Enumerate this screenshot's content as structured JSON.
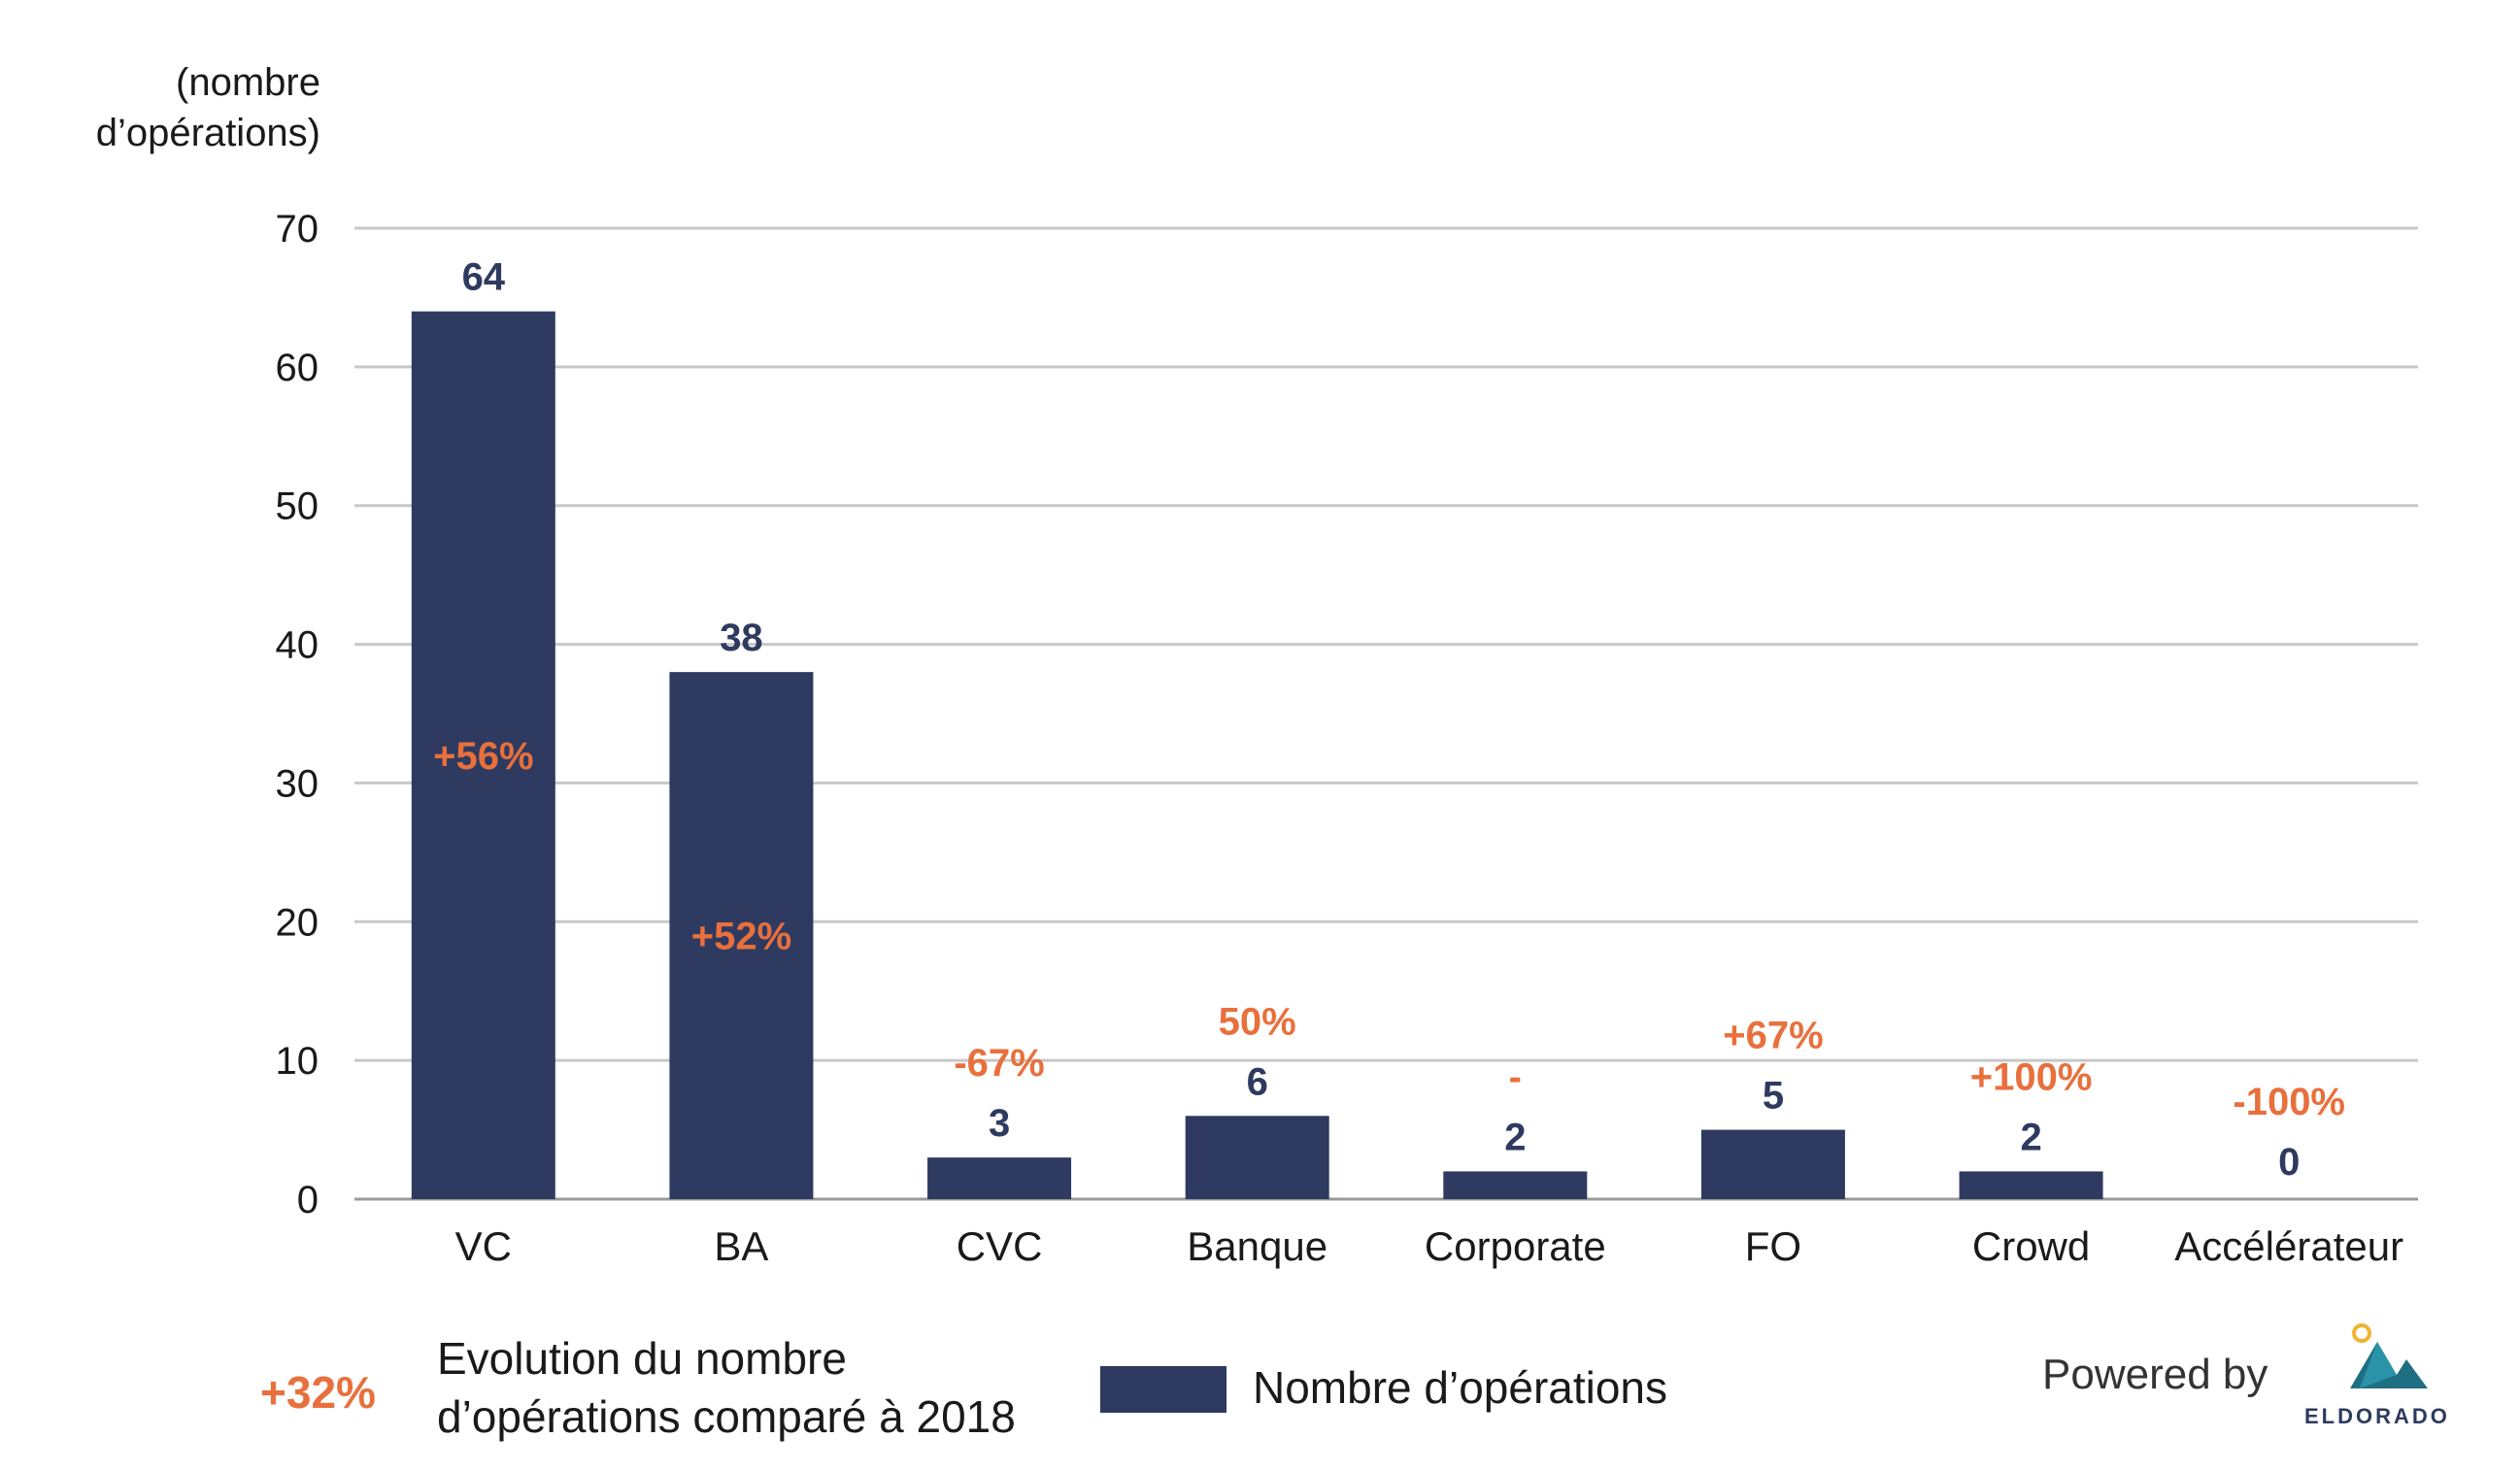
{
  "chart_data": {
    "type": "bar",
    "ylabel_lines": [
      "(nombre",
      "d’opérations)"
    ],
    "ylim": [
      0,
      70
    ],
    "yticks": [
      0,
      10,
      20,
      30,
      40,
      50,
      60,
      70
    ],
    "grid": true,
    "categories": [
      "VC",
      "BA",
      "CVC",
      "Banque",
      "Corporate",
      "FO",
      "Crowd",
      "Accélérateur"
    ],
    "series": [
      {
        "name": "Nombre d’opérations",
        "color": "#2e3a5f",
        "values": [
          64,
          38,
          3,
          6,
          2,
          5,
          2,
          0
        ],
        "labels": [
          "64",
          "38",
          "3",
          "6",
          "2",
          "5",
          "2",
          "0"
        ]
      }
    ],
    "evolution_labels": [
      "+56%",
      "+52%",
      "-67%",
      "50%",
      "-",
      "+67%",
      "+100%",
      "-100%"
    ],
    "evolution_color": "#e8703c"
  },
  "legend": {
    "evolution_value": "+32%",
    "evolution_text_lines": [
      "Evolution du nombre",
      "d’opérations comparé à 2018"
    ],
    "series_label": "Nombre d’opérations"
  },
  "branding": {
    "powered_by": "Powered by",
    "logo_text": "ELDORADO",
    "logo_name": "eldorado-mountain-logo"
  }
}
